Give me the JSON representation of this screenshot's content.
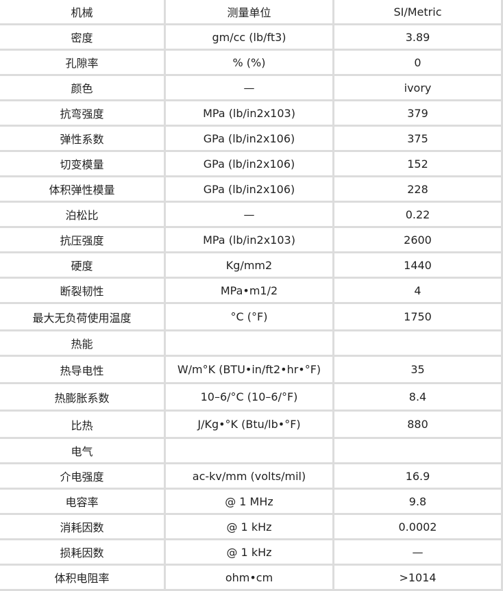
{
  "table": {
    "rows": [
      [
        "机械",
        "测量单位",
        "SI/Metric"
      ],
      [
        "密度",
        "gm/cc (lb/ft3)",
        "3.89"
      ],
      [
        "孔隙率",
        "% (%)",
        "0"
      ],
      [
        "颜色",
        "—",
        "ivory"
      ],
      [
        "抗弯强度",
        "MPa (lb/in2x103)",
        "379"
      ],
      [
        "弹性系数",
        "GPa (lb/in2x106)",
        "375"
      ],
      [
        "切变模量",
        "GPa (lb/in2x106)",
        "152"
      ],
      [
        "体积弹性模量",
        "GPa (lb/in2x106)",
        "228"
      ],
      [
        "泊松比",
        "—",
        "0.22"
      ],
      [
        "抗压强度",
        "MPa (lb/in2x103)",
        "2600"
      ],
      [
        "硬度",
        "Kg/mm2",
        "1440"
      ],
      [
        "断裂韧性",
        "MPa•m1/2",
        "4"
      ],
      [
        "最大无负荷使用温度",
        "°C (°F)",
        "1750"
      ],
      [
        "热能",
        "",
        ""
      ],
      [
        "热导电性",
        "W/m°K (BTU•in/ft2•hr•°F)",
        "35"
      ],
      [
        "热膨胀系数",
        "10–6/°C (10–6/°F)",
        "8.4"
      ],
      [
        "比热",
        "J/Kg•°K (Btu/lb•°F)",
        "880"
      ],
      [
        "电气",
        "",
        ""
      ],
      [
        "介电强度",
        "ac-kv/mm (volts/mil)",
        "16.9"
      ],
      [
        "电容率",
        "@ 1 MHz",
        "9.8"
      ],
      [
        "消耗因数",
        "@ 1 kHz",
        "0.0002"
      ],
      [
        "损耗因数",
        "@ 1 kHz",
        "—"
      ],
      [
        "体积电阻率",
        "ohm•cm",
        ">1014"
      ]
    ]
  }
}
